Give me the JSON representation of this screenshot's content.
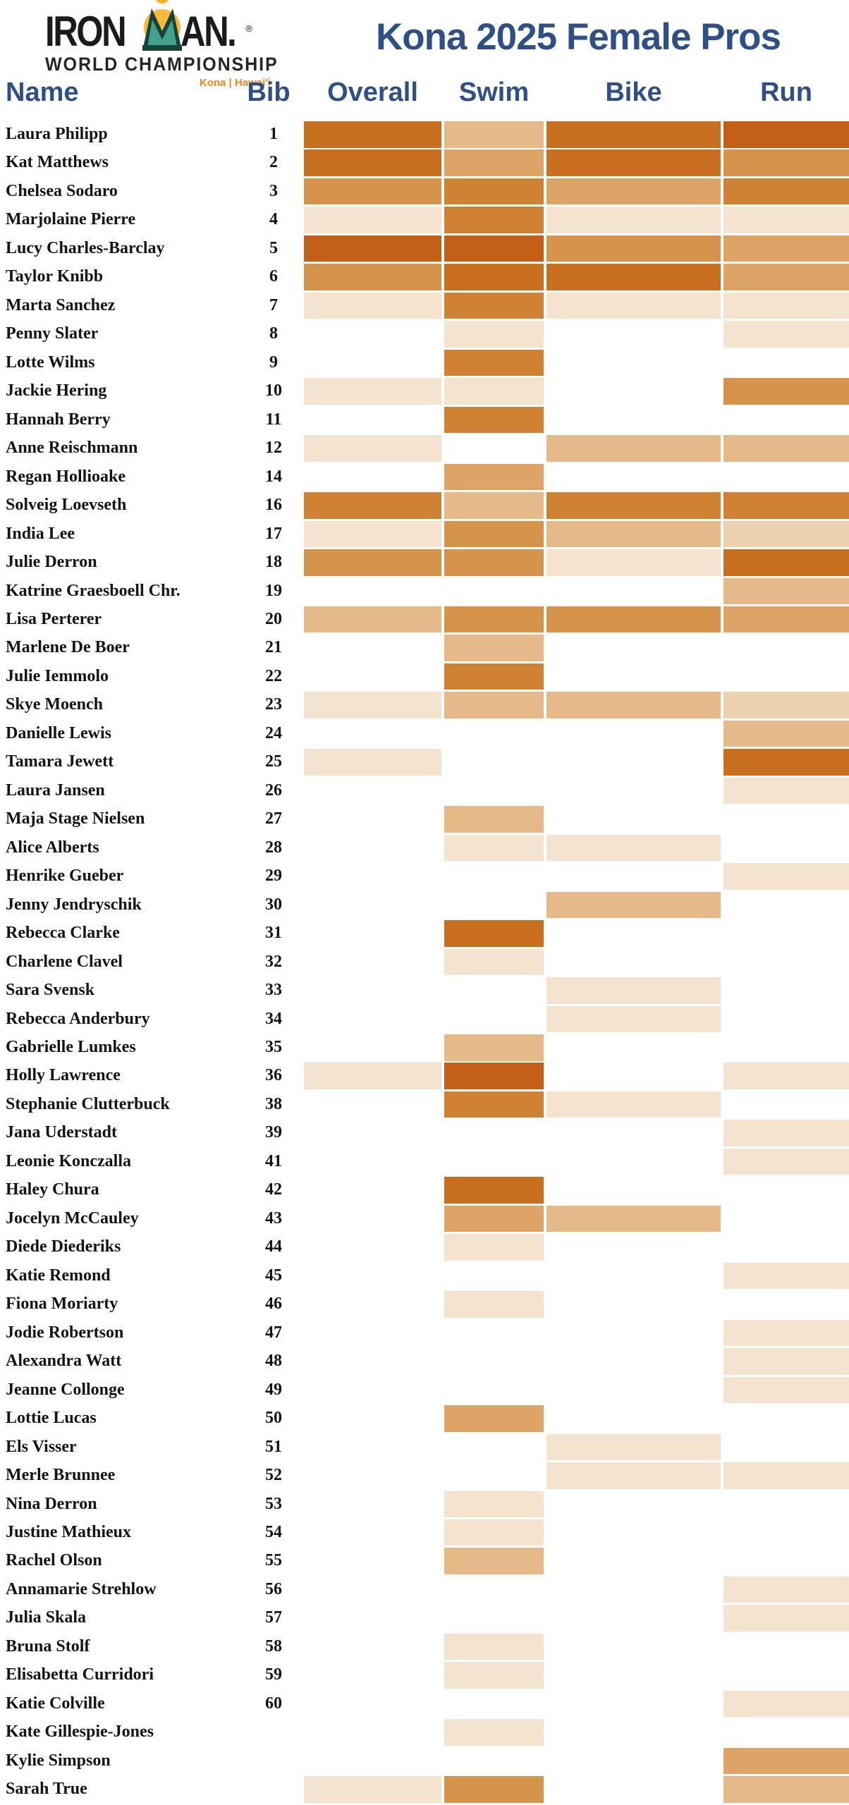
{
  "logo": {
    "brand_left": "IRON",
    "brand_right": "AN.",
    "registered_mark": "®",
    "subtitle": "WORLD CHAMPIONSHIP",
    "location": "Kona | Hawai'i",
    "icon": "ironman-mdot-icon"
  },
  "colors": {
    "heading_blue": "#2F5086",
    "name_text": "#141414",
    "kona_orange": "#EE8722",
    "sun_yellow": "#FBC93D",
    "sun_orange": "#F29A1E",
    "mdot_teal": "#43A18C",
    "mdot_dark": "#16443B"
  },
  "chart_data": {
    "type": "heatmap",
    "title": "Kona 2025 Female Pros",
    "columns": [
      "Name",
      "Bib",
      "Overall",
      "Swim",
      "Bike",
      "Run"
    ],
    "heat_columns": [
      "overall",
      "swim",
      "bike",
      "run"
    ],
    "palette": {
      "0": "#FFFFFF",
      "1": "#C45F17",
      "2": "#C8701F",
      "3": "#CF8134",
      "4": "#D6934B",
      "5": "#DDA465",
      "6": "#E5B988",
      "7": "#EDD2B2",
      "8": "#F4E3CF"
    },
    "palette_note": "1 = darkest orange, 8 = lightest cream, 0 = blank",
    "rows": [
      {
        "name": "Laura Philipp",
        "bib": "1",
        "overall": 2,
        "swim": 6,
        "bike": 2,
        "run": 1
      },
      {
        "name": "Kat Matthews",
        "bib": "2",
        "overall": 2,
        "swim": 5,
        "bike": 2,
        "run": 4
      },
      {
        "name": "Chelsea Sodaro",
        "bib": "3",
        "overall": 4,
        "swim": 3,
        "bike": 5,
        "run": 3
      },
      {
        "name": "Marjolaine Pierre",
        "bib": "4",
        "overall": 8,
        "swim": 3,
        "bike": 8,
        "run": 8
      },
      {
        "name": "Lucy Charles-Barclay",
        "bib": "5",
        "overall": 1,
        "swim": 1,
        "bike": 4,
        "run": 5
      },
      {
        "name": "Taylor Knibb",
        "bib": "6",
        "overall": 4,
        "swim": 2,
        "bike": 2,
        "run": 5
      },
      {
        "name": "Marta Sanchez",
        "bib": "7",
        "overall": 8,
        "swim": 3,
        "bike": 8,
        "run": 8
      },
      {
        "name": "Penny Slater",
        "bib": "8",
        "overall": 0,
        "swim": 8,
        "bike": 0,
        "run": 8
      },
      {
        "name": "Lotte Wilms",
        "bib": "9",
        "overall": 0,
        "swim": 3,
        "bike": 0,
        "run": 0
      },
      {
        "name": "Jackie Hering",
        "bib": "10",
        "overall": 8,
        "swim": 8,
        "bike": 0,
        "run": 4
      },
      {
        "name": "Hannah Berry",
        "bib": "11",
        "overall": 0,
        "swim": 3,
        "bike": 0,
        "run": 0
      },
      {
        "name": "Anne Reischmann",
        "bib": "12",
        "overall": 8,
        "swim": 0,
        "bike": 6,
        "run": 6
      },
      {
        "name": "Regan Hollioake",
        "bib": "14",
        "overall": 0,
        "swim": 5,
        "bike": 0,
        "run": 0
      },
      {
        "name": "Solveig Loevseth",
        "bib": "16",
        "overall": 3,
        "swim": 6,
        "bike": 3,
        "run": 3
      },
      {
        "name": "India Lee",
        "bib": "17",
        "overall": 8,
        "swim": 4,
        "bike": 6,
        "run": 7
      },
      {
        "name": "Julie Derron",
        "bib": "18",
        "overall": 4,
        "swim": 4,
        "bike": 8,
        "run": 2
      },
      {
        "name": "Katrine Graesboell Chr.",
        "bib": "19",
        "overall": 0,
        "swim": 0,
        "bike": 0,
        "run": 6
      },
      {
        "name": "Lisa Perterer",
        "bib": "20",
        "overall": 6,
        "swim": 4,
        "bike": 4,
        "run": 5
      },
      {
        "name": "Marlene De Boer",
        "bib": "21",
        "overall": 0,
        "swim": 6,
        "bike": 0,
        "run": 0
      },
      {
        "name": "Julie Iemmolo",
        "bib": "22",
        "overall": 0,
        "swim": 3,
        "bike": 0,
        "run": 0
      },
      {
        "name": "Skye Moench",
        "bib": "23",
        "overall": 8,
        "swim": 6,
        "bike": 6,
        "run": 7
      },
      {
        "name": "Danielle Lewis",
        "bib": "24",
        "overall": 0,
        "swim": 0,
        "bike": 0,
        "run": 6
      },
      {
        "name": "Tamara Jewett",
        "bib": "25",
        "overall": 8,
        "swim": 0,
        "bike": 0,
        "run": 2
      },
      {
        "name": "Laura Jansen",
        "bib": "26",
        "overall": 0,
        "swim": 0,
        "bike": 0,
        "run": 8
      },
      {
        "name": "Maja Stage Nielsen",
        "bib": "27",
        "overall": 0,
        "swim": 6,
        "bike": 0,
        "run": 0
      },
      {
        "name": "Alice Alberts",
        "bib": "28",
        "overall": 0,
        "swim": 8,
        "bike": 8,
        "run": 0
      },
      {
        "name": "Henrike Gueber",
        "bib": "29",
        "overall": 0,
        "swim": 0,
        "bike": 0,
        "run": 8
      },
      {
        "name": "Jenny Jendryschik",
        "bib": "30",
        "overall": 0,
        "swim": 0,
        "bike": 6,
        "run": 0
      },
      {
        "name": "Rebecca Clarke",
        "bib": "31",
        "overall": 0,
        "swim": 2,
        "bike": 0,
        "run": 0
      },
      {
        "name": "Charlene Clavel",
        "bib": "32",
        "overall": 0,
        "swim": 8,
        "bike": 0,
        "run": 0
      },
      {
        "name": "Sara Svensk",
        "bib": "33",
        "overall": 0,
        "swim": 0,
        "bike": 8,
        "run": 0
      },
      {
        "name": "Rebecca Anderbury",
        "bib": "34",
        "overall": 0,
        "swim": 0,
        "bike": 8,
        "run": 0
      },
      {
        "name": "Gabrielle Lumkes",
        "bib": "35",
        "overall": 0,
        "swim": 6,
        "bike": 0,
        "run": 0
      },
      {
        "name": "Holly Lawrence",
        "bib": "36",
        "overall": 8,
        "swim": 1,
        "bike": 0,
        "run": 8
      },
      {
        "name": "Stephanie Clutterbuck",
        "bib": "38",
        "overall": 0,
        "swim": 3,
        "bike": 8,
        "run": 0
      },
      {
        "name": "Jana Uderstadt",
        "bib": "39",
        "overall": 0,
        "swim": 0,
        "bike": 0,
        "run": 8
      },
      {
        "name": "Leonie Konczalla",
        "bib": "41",
        "overall": 0,
        "swim": 0,
        "bike": 0,
        "run": 8
      },
      {
        "name": "Haley Chura",
        "bib": "42",
        "overall": 0,
        "swim": 2,
        "bike": 0,
        "run": 0
      },
      {
        "name": "Jocelyn McCauley",
        "bib": "43",
        "overall": 0,
        "swim": 5,
        "bike": 6,
        "run": 0
      },
      {
        "name": "Diede Diederiks",
        "bib": "44",
        "overall": 0,
        "swim": 8,
        "bike": 0,
        "run": 0
      },
      {
        "name": "Katie Remond",
        "bib": "45",
        "overall": 0,
        "swim": 0,
        "bike": 0,
        "run": 8
      },
      {
        "name": "Fiona Moriarty",
        "bib": "46",
        "overall": 0,
        "swim": 8,
        "bike": 0,
        "run": 0
      },
      {
        "name": "Jodie Robertson",
        "bib": "47",
        "overall": 0,
        "swim": 0,
        "bike": 0,
        "run": 8
      },
      {
        "name": "Alexandra Watt",
        "bib": "48",
        "overall": 0,
        "swim": 0,
        "bike": 0,
        "run": 8
      },
      {
        "name": "Jeanne Collonge",
        "bib": "49",
        "overall": 0,
        "swim": 0,
        "bike": 0,
        "run": 8
      },
      {
        "name": "Lottie Lucas",
        "bib": "50",
        "overall": 0,
        "swim": 5,
        "bike": 0,
        "run": 0
      },
      {
        "name": "Els Visser",
        "bib": "51",
        "overall": 0,
        "swim": 0,
        "bike": 8,
        "run": 0
      },
      {
        "name": "Merle Brunnee",
        "bib": "52",
        "overall": 0,
        "swim": 0,
        "bike": 8,
        "run": 8
      },
      {
        "name": "Nina Derron",
        "bib": "53",
        "overall": 0,
        "swim": 8,
        "bike": 0,
        "run": 0
      },
      {
        "name": "Justine Mathieux",
        "bib": "54",
        "overall": 0,
        "swim": 8,
        "bike": 0,
        "run": 0
      },
      {
        "name": "Rachel Olson",
        "bib": "55",
        "overall": 0,
        "swim": 6,
        "bike": 0,
        "run": 0
      },
      {
        "name": "Annamarie Strehlow",
        "bib": "56",
        "overall": 0,
        "swim": 0,
        "bike": 0,
        "run": 8
      },
      {
        "name": "Julia Skala",
        "bib": "57",
        "overall": 0,
        "swim": 0,
        "bike": 0,
        "run": 8
      },
      {
        "name": "Bruna Stolf",
        "bib": "58",
        "overall": 0,
        "swim": 8,
        "bike": 0,
        "run": 0
      },
      {
        "name": "Elisabetta Curridori",
        "bib": "59",
        "overall": 0,
        "swim": 8,
        "bike": 0,
        "run": 0
      },
      {
        "name": "Katie Colville",
        "bib": "60",
        "overall": 0,
        "swim": 0,
        "bike": 0,
        "run": 8
      },
      {
        "name": "Kate Gillespie-Jones",
        "bib": "",
        "overall": 0,
        "swim": 8,
        "bike": 0,
        "run": 0
      },
      {
        "name": "Kylie Simpson",
        "bib": "",
        "overall": 0,
        "swim": 0,
        "bike": 0,
        "run": 5
      },
      {
        "name": "Sarah True",
        "bib": "",
        "overall": 8,
        "swim": 4,
        "bike": 0,
        "run": 6
      }
    ]
  }
}
